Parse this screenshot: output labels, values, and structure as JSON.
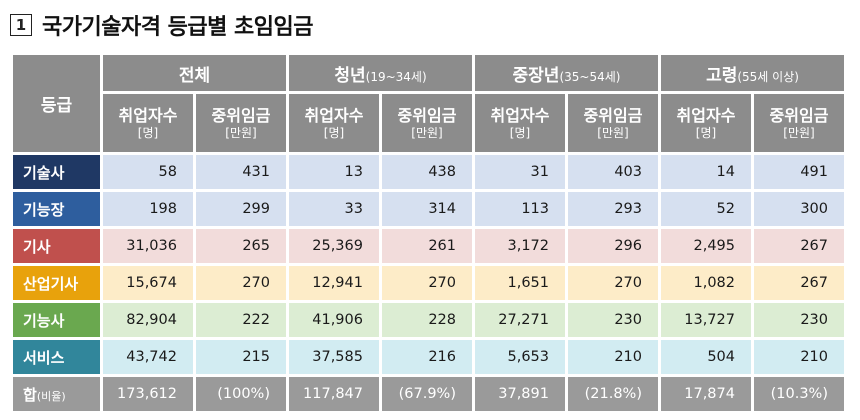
{
  "title": {
    "number": "1",
    "text": "국가기술자격 등급별 초임임금"
  },
  "table": {
    "grade_header": "등급",
    "groups": [
      {
        "label": "전체",
        "sub": ""
      },
      {
        "label": "청년",
        "sub": "(19~34세)"
      },
      {
        "label": "중장년",
        "sub": "(35~54세)"
      },
      {
        "label": "고령",
        "sub": "(55세 이상)"
      }
    ],
    "sub_headers": {
      "employed": "취업자수",
      "employed_unit": "[명]",
      "wage": "중위임금",
      "wage_unit": "[만원]"
    },
    "rows": [
      {
        "grade": "기술사",
        "values": [
          "58",
          "431",
          "13",
          "438",
          "31",
          "403",
          "14",
          "491"
        ]
      },
      {
        "grade": "기능장",
        "values": [
          "198",
          "299",
          "33",
          "314",
          "113",
          "293",
          "52",
          "300"
        ]
      },
      {
        "grade": "기사",
        "values": [
          "31,036",
          "265",
          "25,369",
          "261",
          "3,172",
          "296",
          "2,495",
          "267"
        ]
      },
      {
        "grade": "산업기사",
        "values": [
          "15,674",
          "270",
          "12,941",
          "270",
          "1,651",
          "270",
          "1,082",
          "267"
        ]
      },
      {
        "grade": "기능사",
        "values": [
          "82,904",
          "222",
          "41,906",
          "228",
          "27,271",
          "230",
          "13,727",
          "230"
        ]
      },
      {
        "grade": "서비스",
        "values": [
          "43,742",
          "215",
          "37,585",
          "216",
          "5,653",
          "210",
          "504",
          "210"
        ]
      }
    ],
    "total": {
      "grade": "합",
      "grade_sub": "(비율)",
      "values": [
        "173,612",
        "(100%)",
        "117,847",
        "(67.9%)",
        "37,891",
        "(21.8%)",
        "17,874",
        "(10.3%)"
      ]
    }
  }
}
